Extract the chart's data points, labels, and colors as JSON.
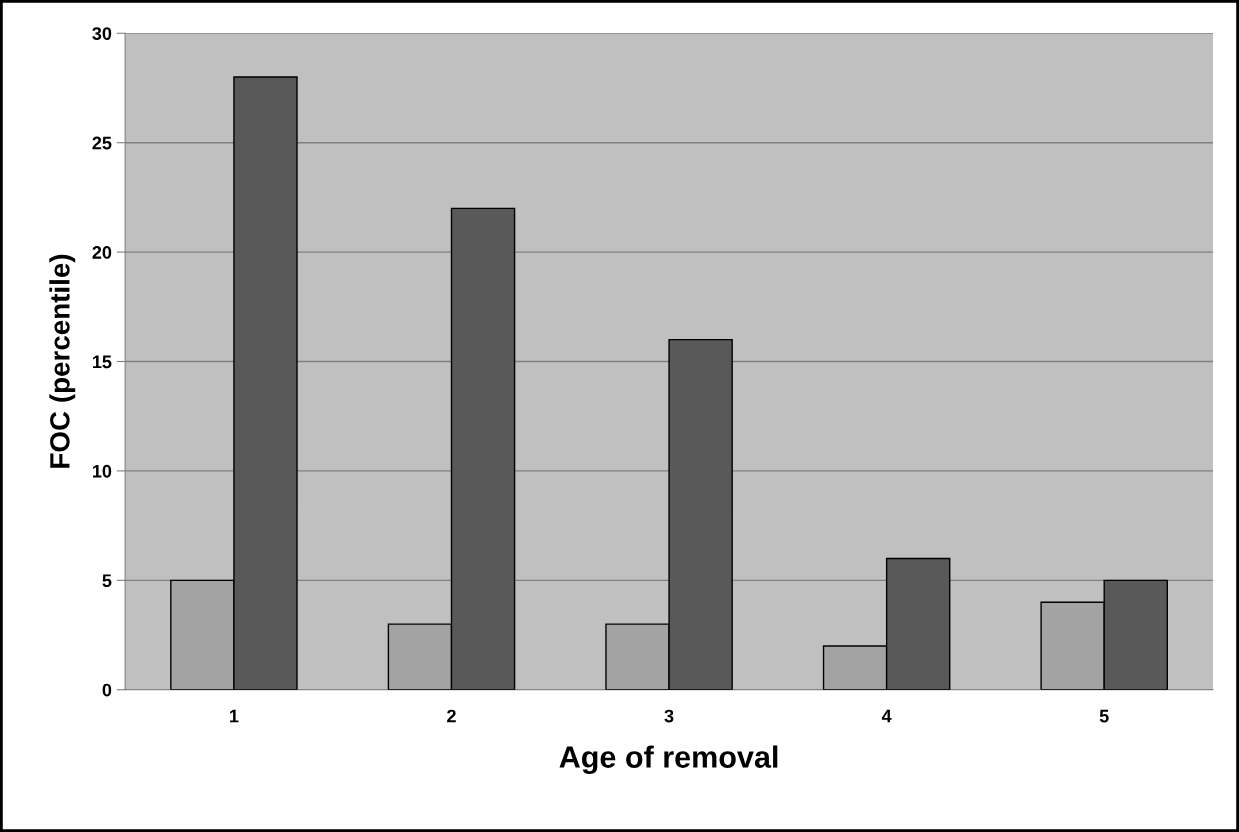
{
  "chart_data": {
    "type": "bar",
    "xlabel": "Age of removal",
    "ylabel": "FOC (percentile)",
    "categories": [
      "1",
      "2",
      "3",
      "4",
      "5"
    ],
    "series": [
      {
        "color": "#a3a3a3",
        "values": [
          5,
          3,
          3,
          2,
          4
        ]
      },
      {
        "color": "#595959",
        "values": [
          28,
          22,
          16,
          6,
          5
        ]
      }
    ],
    "ylim": [
      0,
      30
    ],
    "yticks": [
      0,
      5,
      10,
      15,
      20,
      25,
      30
    ],
    "grid": "y",
    "legend": false
  }
}
